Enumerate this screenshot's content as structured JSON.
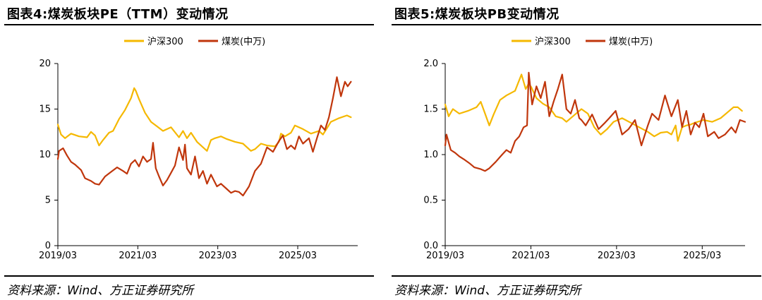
{
  "source_text": "资料来源：Wind、方正证券研究所",
  "colors": {
    "hs300": "#F5B800",
    "coal": "#C0360C",
    "axis": "#000000"
  },
  "chart_data": [
    {
      "type": "line",
      "title": "图表4:煤炭板块PE（TTM）变动情况",
      "xlabel": "",
      "ylabel": "",
      "ylim": [
        0,
        20
      ],
      "yticks": [
        "0",
        "5",
        "10",
        "15",
        "20"
      ],
      "ytick_values": [
        0,
        5,
        10,
        15,
        20
      ],
      "xlim": [
        2019.17,
        2026.67
      ],
      "xticks": [
        "2019/03",
        "2021/03",
        "2023/03",
        "2025/03"
      ],
      "xtick_values": [
        2019.17,
        2021.17,
        2023.17,
        2025.17
      ],
      "legend_position": "top-center",
      "series": [
        {
          "name": "沪深300",
          "color": "#F5B800",
          "x": [
            2019.17,
            2019.25,
            2019.35,
            2019.5,
            2019.7,
            2019.9,
            2020.0,
            2020.1,
            2020.2,
            2020.3,
            2020.45,
            2020.55,
            2020.7,
            2020.85,
            2021.0,
            2021.08,
            2021.12,
            2021.2,
            2021.35,
            2021.5,
            2021.65,
            2021.8,
            2022.0,
            2022.2,
            2022.3,
            2022.4,
            2022.5,
            2022.65,
            2022.8,
            2022.9,
            2023.0,
            2023.1,
            2023.25,
            2023.4,
            2023.6,
            2023.8,
            2024.0,
            2024.1,
            2024.25,
            2024.4,
            2024.6,
            2024.7,
            2024.75,
            2024.85,
            2025.0,
            2025.1,
            2025.3,
            2025.5,
            2025.7,
            2025.8,
            2025.9,
            2026.0,
            2026.2,
            2026.4,
            2026.5
          ],
          "values": [
            13.3,
            12.2,
            11.8,
            12.3,
            12.0,
            11.9,
            12.5,
            12.1,
            11.0,
            11.6,
            12.4,
            12.6,
            13.9,
            14.9,
            16.2,
            17.3,
            17.0,
            16.1,
            14.6,
            13.6,
            13.1,
            12.6,
            13.0,
            11.9,
            12.6,
            11.8,
            12.4,
            11.4,
            10.8,
            10.4,
            11.6,
            11.8,
            12.0,
            11.7,
            11.4,
            11.2,
            10.4,
            10.6,
            11.2,
            11.0,
            10.9,
            11.4,
            12.3,
            12.0,
            12.4,
            13.2,
            12.8,
            12.3,
            12.6,
            12.2,
            12.9,
            13.6,
            14.0,
            14.3,
            14.1
          ]
        },
        {
          "name": "煤炭(中万)",
          "color": "#C0360C",
          "x": [
            2019.17,
            2019.2,
            2019.3,
            2019.4,
            2019.5,
            2019.6,
            2019.75,
            2019.85,
            2020.0,
            2020.1,
            2020.2,
            2020.35,
            2020.5,
            2020.65,
            2020.8,
            2020.9,
            2021.0,
            2021.1,
            2021.2,
            2021.3,
            2021.4,
            2021.5,
            2021.55,
            2021.62,
            2021.7,
            2021.8,
            2021.9,
            2022.0,
            2022.1,
            2022.2,
            2022.3,
            2022.35,
            2022.4,
            2022.5,
            2022.6,
            2022.7,
            2022.8,
            2022.9,
            2023.0,
            2023.15,
            2023.25,
            2023.4,
            2023.5,
            2023.6,
            2023.7,
            2023.8,
            2023.95,
            2024.1,
            2024.25,
            2024.4,
            2024.55,
            2024.7,
            2024.8,
            2024.9,
            2025.0,
            2025.1,
            2025.2,
            2025.3,
            2025.45,
            2025.55,
            2025.65,
            2025.75,
            2025.85,
            2025.95,
            2026.05,
            2026.15,
            2026.25,
            2026.35,
            2026.42,
            2026.5
          ],
          "values": [
            9.5,
            10.4,
            10.7,
            9.9,
            9.2,
            8.9,
            8.3,
            7.4,
            7.1,
            6.8,
            6.7,
            7.6,
            8.1,
            8.6,
            8.2,
            7.9,
            9.0,
            9.4,
            8.7,
            9.8,
            9.2,
            9.5,
            11.3,
            8.5,
            7.6,
            6.6,
            7.2,
            8.0,
            8.8,
            10.8,
            9.4,
            11.1,
            8.5,
            7.8,
            9.8,
            7.4,
            8.2,
            6.8,
            7.8,
            6.5,
            6.8,
            6.2,
            5.8,
            6.0,
            5.9,
            5.5,
            6.5,
            8.2,
            9.0,
            10.8,
            10.3,
            11.5,
            12.1,
            10.6,
            11.0,
            10.6,
            12.0,
            11.2,
            11.8,
            10.3,
            11.8,
            13.2,
            12.7,
            14.1,
            16.2,
            18.5,
            16.4,
            18.0,
            17.5,
            18.0
          ]
        }
      ]
    },
    {
      "type": "line",
      "title": "图表5:煤炭板块PB变动情况",
      "xlabel": "",
      "ylabel": "",
      "ylim": [
        0,
        2
      ],
      "yticks": [
        "0.0",
        "0.5",
        "1.0",
        "1.5",
        "2.0"
      ],
      "ytick_values": [
        0,
        0.5,
        1.0,
        1.5,
        2.0
      ],
      "xlim": [
        2019.17,
        2026.17
      ],
      "xticks": [
        "2019/03",
        "2021/03",
        "2023/03",
        "2025/03"
      ],
      "xtick_values": [
        2019.17,
        2021.17,
        2023.17,
        2025.17
      ],
      "legend_position": "top-center",
      "series": [
        {
          "name": "沪深300",
          "color": "#F5B800",
          "x": [
            2019.17,
            2019.25,
            2019.35,
            2019.5,
            2019.7,
            2019.9,
            2020.0,
            2020.1,
            2020.2,
            2020.3,
            2020.45,
            2020.6,
            2020.8,
            2020.95,
            2021.05,
            2021.12,
            2021.18,
            2021.3,
            2021.45,
            2021.6,
            2021.75,
            2021.9,
            2022.0,
            2022.2,
            2022.35,
            2022.5,
            2022.65,
            2022.8,
            2022.95,
            2023.1,
            2023.3,
            2023.5,
            2023.7,
            2023.9,
            2024.05,
            2024.2,
            2024.35,
            2024.45,
            2024.55,
            2024.6,
            2024.7,
            2024.8,
            2024.9,
            2025.0,
            2025.2,
            2025.4,
            2025.6,
            2025.75,
            2025.9,
            2026.0,
            2026.1
          ],
          "values": [
            1.55,
            1.42,
            1.5,
            1.45,
            1.48,
            1.52,
            1.58,
            1.45,
            1.32,
            1.44,
            1.6,
            1.65,
            1.7,
            1.88,
            1.72,
            1.78,
            1.74,
            1.62,
            1.56,
            1.52,
            1.42,
            1.4,
            1.36,
            1.44,
            1.5,
            1.45,
            1.3,
            1.22,
            1.28,
            1.36,
            1.4,
            1.35,
            1.3,
            1.25,
            1.2,
            1.24,
            1.25,
            1.22,
            1.32,
            1.15,
            1.3,
            1.32,
            1.33,
            1.35,
            1.38,
            1.36,
            1.4,
            1.46,
            1.52,
            1.52,
            1.48
          ]
        },
        {
          "name": "煤炭(中万)",
          "color": "#C0360C",
          "x": [
            2019.17,
            2019.2,
            2019.3,
            2019.4,
            2019.5,
            2019.6,
            2019.75,
            2019.85,
            2020.0,
            2020.1,
            2020.2,
            2020.35,
            2020.5,
            2020.6,
            2020.7,
            2020.8,
            2020.9,
            2021.0,
            2021.08,
            2021.12,
            2021.2,
            2021.3,
            2021.4,
            2021.5,
            2021.6,
            2021.7,
            2021.8,
            2021.9,
            2022.0,
            2022.1,
            2022.2,
            2022.3,
            2022.35,
            2022.45,
            2022.6,
            2022.75,
            2022.9,
            2023.0,
            2023.15,
            2023.3,
            2023.45,
            2023.6,
            2023.75,
            2023.9,
            2024.0,
            2024.15,
            2024.3,
            2024.45,
            2024.6,
            2024.7,
            2024.8,
            2024.9,
            2025.0,
            2025.1,
            2025.2,
            2025.3,
            2025.45,
            2025.55,
            2025.7,
            2025.85,
            2025.95,
            2026.05,
            2026.17
          ],
          "values": [
            1.1,
            1.22,
            1.05,
            1.02,
            0.98,
            0.95,
            0.9,
            0.86,
            0.84,
            0.82,
            0.85,
            0.92,
            1.0,
            1.05,
            1.02,
            1.15,
            1.2,
            1.3,
            1.32,
            1.9,
            1.55,
            1.75,
            1.62,
            1.8,
            1.42,
            1.58,
            1.72,
            1.88,
            1.5,
            1.45,
            1.6,
            1.4,
            1.38,
            1.32,
            1.44,
            1.28,
            1.35,
            1.4,
            1.48,
            1.22,
            1.28,
            1.38,
            1.1,
            1.32,
            1.45,
            1.38,
            1.65,
            1.42,
            1.6,
            1.3,
            1.48,
            1.22,
            1.35,
            1.3,
            1.45,
            1.2,
            1.25,
            1.18,
            1.22,
            1.3,
            1.24,
            1.38,
            1.36
          ]
        }
      ]
    }
  ]
}
